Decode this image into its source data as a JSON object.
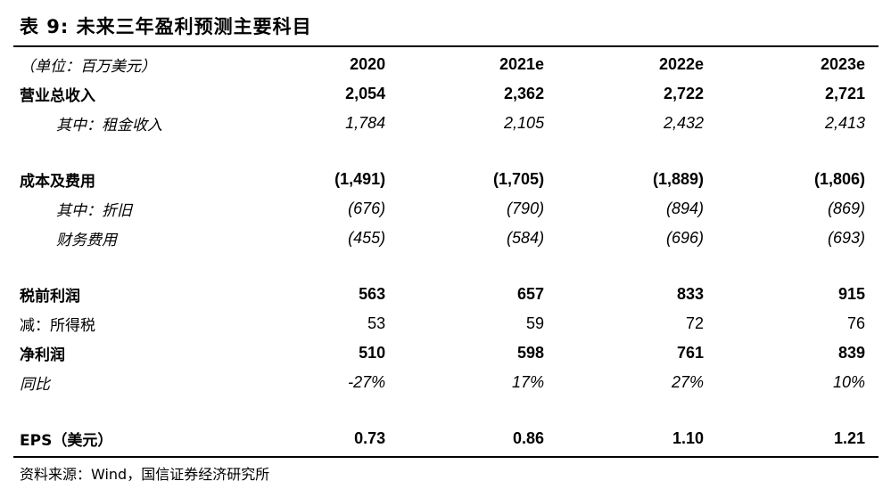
{
  "title": "表 9:  未来三年盈利预测主要科目",
  "header": {
    "unit": "（单位：百万美元）",
    "years": [
      "2020",
      "2021e",
      "2022e",
      "2023e"
    ]
  },
  "rows": [
    {
      "label": "营业总收入",
      "values": [
        "2,054",
        "2,362",
        "2,722",
        "2,721"
      ]
    },
    {
      "label": "其中：租金收入",
      "values": [
        "1,784",
        "2,105",
        "2,432",
        "2,413"
      ]
    },
    {
      "label": "成本及费用",
      "values": [
        "(1,491)",
        "(1,705)",
        "(1,889)",
        "(1,806)"
      ]
    },
    {
      "label": "其中：折旧",
      "values": [
        "(676)",
        "(790)",
        "(894)",
        "(869)"
      ]
    },
    {
      "label": "财务费用",
      "values": [
        "(455)",
        "(584)",
        "(696)",
        "(693)"
      ]
    },
    {
      "label": "税前利润",
      "values": [
        "563",
        "657",
        "833",
        "915"
      ]
    },
    {
      "label": "减：所得税",
      "values": [
        "53",
        "59",
        "72",
        "76"
      ]
    },
    {
      "label": "净利润",
      "values": [
        "510",
        "598",
        "761",
        "839"
      ]
    },
    {
      "label": "同比",
      "values": [
        "-27%",
        "17%",
        "27%",
        "10%"
      ]
    },
    {
      "label": "EPS（美元）",
      "values": [
        "0.73",
        "0.86",
        "1.10",
        "1.21"
      ]
    }
  ],
  "source": "资料来源：Wind，国信证券经济研究所"
}
